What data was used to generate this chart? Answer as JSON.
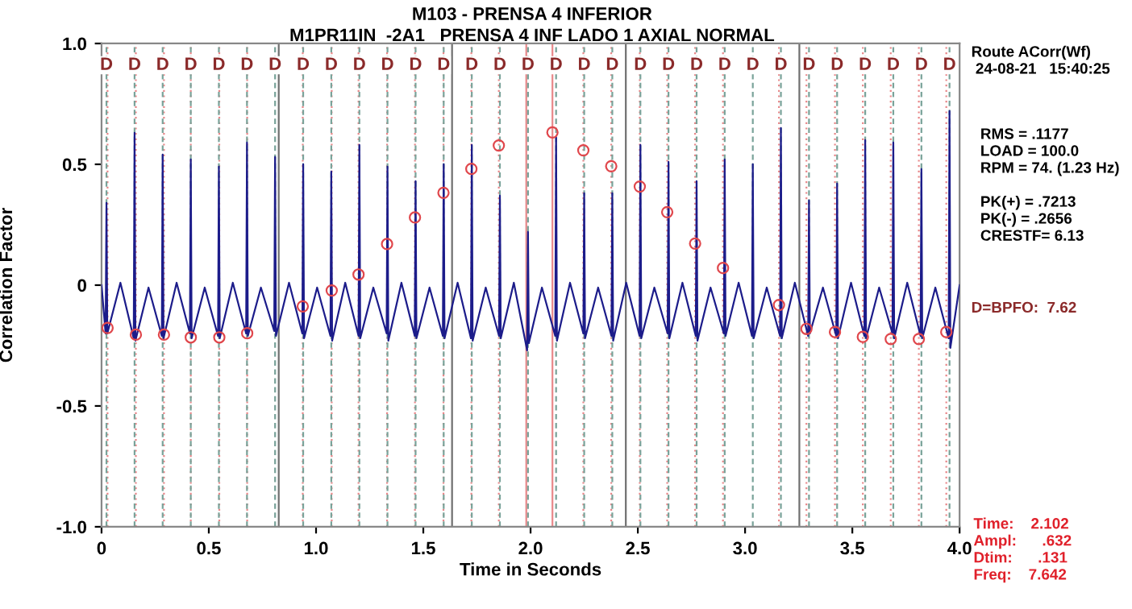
{
  "chart_data": {
    "type": "line",
    "title": "M103 - PRENSA 4 INFERIOR",
    "subtitle": "M1PR11IN  -2A1   PRENSA 4 INF LADO 1 AXIAL NORMAL",
    "xlabel": "Time in Seconds",
    "ylabel": "Correlation Factor",
    "xlim": [
      0,
      4.0
    ],
    "ylim": [
      -1.0,
      1.0
    ],
    "xticks": [
      0,
      0.5,
      {
        "value": 1,
        "label": "1.0"
      },
      1.5,
      {
        "value": 2,
        "label": "2.0"
      },
      2.5,
      {
        "value": 3,
        "label": "3.0"
      },
      3.5,
      {
        "value": 4,
        "label": "4.0"
      }
    ],
    "yticks": [
      {
        "value": -1,
        "label": "-1.0"
      },
      -0.5,
      0,
      0.5,
      {
        "value": 1,
        "label": "1.0"
      }
    ],
    "grid": false,
    "legend": false,
    "line_style": "solid",
    "annotations": [
      "Route ACorr(Wf)\n 24-08-21   15:40:25",
      "RMS = .1177\nLOAD = 100.0\nRPM = 74. (1.23 Hz)\n\nPK(+) = .7213\nPK(-) = .2656\nCRESTF= 6.13",
      "D=BPFO:  7.62",
      "Time:    2.102\nAmpl:      .632\nDtim:      .131\nFreq:    7.642"
    ],
    "series": [
      {
        "color": "#1c1c8a",
        "x": [
          0.0,
          0.019,
          0.023,
          0.027,
          0.088,
          0.15,
          0.154,
          0.158,
          0.219,
          0.281,
          0.285,
          0.289,
          0.35,
          0.412,
          0.416,
          0.42,
          0.481,
          0.543,
          0.547,
          0.551,
          0.612,
          0.674,
          0.678,
          0.682,
          0.743,
          0.805,
          0.809,
          0.813,
          0.874,
          0.936,
          0.94,
          0.944,
          1.005,
          1.067,
          1.071,
          1.075,
          1.136,
          1.198,
          1.202,
          1.206,
          1.267,
          1.329,
          1.333,
          1.337,
          1.398,
          1.46,
          1.464,
          1.468,
          1.529,
          1.591,
          1.595,
          1.599,
          1.66,
          1.722,
          1.726,
          1.73,
          1.791,
          1.853,
          1.857,
          1.861,
          1.922,
          1.984,
          1.988,
          1.992,
          2.053,
          2.115,
          2.119,
          2.123,
          2.184,
          2.246,
          2.25,
          2.254,
          2.315,
          2.377,
          2.381,
          2.385,
          2.446,
          2.508,
          2.512,
          2.516,
          2.577,
          2.639,
          2.643,
          2.647,
          2.708,
          2.77,
          2.774,
          2.778,
          2.839,
          2.901,
          2.905,
          2.909,
          2.97,
          3.032,
          3.036,
          3.04,
          3.101,
          3.163,
          3.167,
          3.171,
          3.232,
          3.294,
          3.298,
          3.302,
          3.363,
          3.425,
          3.429,
          3.433,
          3.494,
          3.556,
          3.56,
          3.564,
          3.625,
          3.687,
          3.691,
          3.695,
          3.756,
          3.818,
          3.822,
          3.826,
          3.887,
          3.949,
          3.953,
          3.957,
          4.0
        ],
        "values": [
          0.0,
          -0.2,
          0.34,
          -0.2,
          0.01,
          -0.22,
          0.63,
          -0.23,
          -0.01,
          -0.21,
          0.54,
          -0.22,
          0.01,
          -0.2,
          0.52,
          -0.22,
          -0.01,
          -0.21,
          0.49,
          -0.22,
          0.01,
          -0.2,
          0.59,
          -0.21,
          -0.01,
          -0.19,
          0.53,
          -0.21,
          0.01,
          -0.2,
          0.5,
          -0.22,
          -0.01,
          -0.21,
          0.47,
          -0.23,
          0.01,
          -0.21,
          0.58,
          -0.22,
          -0.01,
          -0.2,
          0.49,
          -0.23,
          0.01,
          -0.21,
          0.43,
          -0.22,
          -0.01,
          -0.21,
          0.5,
          -0.22,
          0.01,
          -0.22,
          0.58,
          -0.23,
          -0.01,
          -0.21,
          0.37,
          -0.22,
          0.01,
          -0.27,
          0.22,
          -0.24,
          -0.01,
          -0.21,
          0.61,
          -0.23,
          0.01,
          -0.2,
          0.38,
          -0.22,
          -0.01,
          -0.21,
          0.38,
          -0.23,
          0.01,
          -0.21,
          0.58,
          -0.22,
          -0.01,
          -0.2,
          0.51,
          -0.22,
          0.01,
          -0.21,
          0.43,
          -0.23,
          -0.01,
          -0.2,
          0.52,
          -0.21,
          0.01,
          -0.21,
          0.5,
          -0.22,
          -0.01,
          -0.21,
          0.65,
          -0.22,
          0.01,
          -0.21,
          0.35,
          -0.2,
          -0.01,
          -0.21,
          0.42,
          -0.22,
          0.01,
          -0.21,
          0.6,
          -0.22,
          -0.01,
          -0.2,
          0.59,
          -0.22,
          0.01,
          -0.21,
          0.48,
          -0.22,
          -0.01,
          -0.22,
          0.72,
          -0.26,
          0.0
        ]
      },
      {
        "type": "scatter",
        "color": "#e0474c",
        "marker": "circle",
        "x": [
          0.028,
          0.16,
          0.291,
          0.416,
          0.549,
          0.679,
          0.938,
          1.073,
          1.198,
          1.331,
          1.461,
          1.594,
          1.724,
          1.852,
          2.102,
          2.246,
          2.376,
          2.509,
          2.637,
          2.767,
          2.897,
          3.158,
          3.286,
          3.419,
          3.549,
          3.679,
          3.81,
          3.938
        ],
        "values": [
          -0.177,
          -0.205,
          -0.205,
          -0.216,
          -0.216,
          -0.199,
          -0.088,
          -0.022,
          0.044,
          0.17,
          0.28,
          0.382,
          0.481,
          0.578,
          0.632,
          0.558,
          0.492,
          0.408,
          0.302,
          0.172,
          0.071,
          -0.082,
          -0.181,
          -0.194,
          -0.214,
          -0.223,
          -0.223,
          -0.194
        ]
      }
    ],
    "ref_lines": [
      {
        "axis": "x",
        "value": 0.826,
        "color": "#707070",
        "line_style": "solid"
      },
      {
        "axis": "x",
        "value": 1.634,
        "color": "#707070",
        "line_style": "solid"
      },
      {
        "axis": "x",
        "value": 2.444,
        "color": "#707070",
        "line_style": "solid"
      },
      {
        "axis": "x",
        "value": 3.253,
        "color": "#707070",
        "line_style": "solid"
      },
      {
        "axis": "x",
        "value": 1.98,
        "color": "#e8888a",
        "line_style": "solid"
      },
      {
        "axis": "x",
        "value": 2.102,
        "color": "#e8888a",
        "line_style": "solid"
      },
      {
        "axis": "x",
        "value": 0.028,
        "color": "#e8888a",
        "line_style": "dotted"
      },
      {
        "axis": "x",
        "value": 0.16,
        "color": "#e8888a",
        "line_style": "dotted"
      },
      {
        "axis": "x",
        "value": 0.291,
        "color": "#e8888a",
        "line_style": "dotted"
      },
      {
        "axis": "x",
        "value": 0.416,
        "color": "#e8888a",
        "line_style": "dotted"
      },
      {
        "axis": "x",
        "value": 0.549,
        "color": "#e8888a",
        "line_style": "dotted"
      },
      {
        "axis": "x",
        "value": 0.679,
        "color": "#e8888a",
        "line_style": "dotted"
      },
      {
        "axis": "x",
        "value": 0.938,
        "color": "#e8888a",
        "line_style": "dotted"
      },
      {
        "axis": "x",
        "value": 1.073,
        "color": "#e8888a",
        "line_style": "dotted"
      },
      {
        "axis": "x",
        "value": 1.198,
        "color": "#e8888a",
        "line_style": "dotted"
      },
      {
        "axis": "x",
        "value": 1.331,
        "color": "#e8888a",
        "line_style": "dotted"
      },
      {
        "axis": "x",
        "value": 1.461,
        "color": "#e8888a",
        "line_style": "dotted"
      },
      {
        "axis": "x",
        "value": 1.594,
        "color": "#e8888a",
        "line_style": "dotted"
      },
      {
        "axis": "x",
        "value": 1.724,
        "color": "#e8888a",
        "line_style": "dotted"
      },
      {
        "axis": "x",
        "value": 1.852,
        "color": "#e8888a",
        "line_style": "dotted"
      },
      {
        "axis": "x",
        "value": 2.246,
        "color": "#e8888a",
        "line_style": "dotted"
      },
      {
        "axis": "x",
        "value": 2.376,
        "color": "#e8888a",
        "line_style": "dotted"
      },
      {
        "axis": "x",
        "value": 2.509,
        "color": "#e8888a",
        "line_style": "dotted"
      },
      {
        "axis": "x",
        "value": 2.637,
        "color": "#e8888a",
        "line_style": "dotted"
      },
      {
        "axis": "x",
        "value": 2.767,
        "color": "#e8888a",
        "line_style": "dotted"
      },
      {
        "axis": "x",
        "value": 2.897,
        "color": "#e8888a",
        "line_style": "dotted"
      },
      {
        "axis": "x",
        "value": 3.158,
        "color": "#e8888a",
        "line_style": "dotted"
      },
      {
        "axis": "x",
        "value": 3.286,
        "color": "#e8888a",
        "line_style": "dotted"
      },
      {
        "axis": "x",
        "value": 3.419,
        "color": "#e8888a",
        "line_style": "dotted"
      },
      {
        "axis": "x",
        "value": 3.549,
        "color": "#e8888a",
        "line_style": "dotted"
      },
      {
        "axis": "x",
        "value": 3.679,
        "color": "#e8888a",
        "line_style": "dotted"
      },
      {
        "axis": "x",
        "value": 3.81,
        "color": "#e8888a",
        "line_style": "dotted"
      },
      {
        "axis": "x",
        "value": 3.938,
        "color": "#e8888a",
        "line_style": "dotted"
      },
      {
        "axis": "x",
        "value": 0.023,
        "label": "D",
        "color": "#7aa39a",
        "line_style": "dashed"
      },
      {
        "axis": "x",
        "value": 0.154,
        "label": "D",
        "color": "#7aa39a",
        "line_style": "dashed"
      },
      {
        "axis": "x",
        "value": 0.285,
        "label": "D",
        "color": "#7aa39a",
        "line_style": "dashed"
      },
      {
        "axis": "x",
        "value": 0.416,
        "label": "D",
        "color": "#7aa39a",
        "line_style": "dashed"
      },
      {
        "axis": "x",
        "value": 0.547,
        "label": "D",
        "color": "#7aa39a",
        "line_style": "dashed"
      },
      {
        "axis": "x",
        "value": 0.678,
        "label": "D",
        "color": "#7aa39a",
        "line_style": "dashed"
      },
      {
        "axis": "x",
        "value": 0.809,
        "label": "D",
        "color": "#7aa39a",
        "line_style": "dashed"
      },
      {
        "axis": "x",
        "value": 0.94,
        "label": "D",
        "color": "#7aa39a",
        "line_style": "dashed"
      },
      {
        "axis": "x",
        "value": 1.071,
        "label": "D",
        "color": "#7aa39a",
        "line_style": "dashed"
      },
      {
        "axis": "x",
        "value": 1.202,
        "label": "D",
        "color": "#7aa39a",
        "line_style": "dashed"
      },
      {
        "axis": "x",
        "value": 1.333,
        "label": "D",
        "color": "#7aa39a",
        "line_style": "dashed"
      },
      {
        "axis": "x",
        "value": 1.464,
        "label": "D",
        "color": "#7aa39a",
        "line_style": "dashed"
      },
      {
        "axis": "x",
        "value": 1.595,
        "label": "D",
        "color": "#7aa39a",
        "line_style": "dashed"
      },
      {
        "axis": "x",
        "value": 1.726,
        "label": "D",
        "color": "#7aa39a",
        "line_style": "dashed"
      },
      {
        "axis": "x",
        "value": 1.857,
        "label": "D",
        "color": "#7aa39a",
        "line_style": "dashed"
      },
      {
        "axis": "x",
        "value": 1.988,
        "label": "D",
        "color": "#7aa39a",
        "line_style": "dashed"
      },
      {
        "axis": "x",
        "value": 2.119,
        "label": "D",
        "color": "#7aa39a",
        "line_style": "dashed"
      },
      {
        "axis": "x",
        "value": 2.25,
        "label": "D",
        "color": "#7aa39a",
        "line_style": "dashed"
      },
      {
        "axis": "x",
        "value": 2.381,
        "label": "D",
        "color": "#7aa39a",
        "line_style": "dashed"
      },
      {
        "axis": "x",
        "value": 2.512,
        "label": "D",
        "color": "#7aa39a",
        "line_style": "dashed"
      },
      {
        "axis": "x",
        "value": 2.643,
        "label": "D",
        "color": "#7aa39a",
        "line_style": "dashed"
      },
      {
        "axis": "x",
        "value": 2.774,
        "label": "D",
        "color": "#7aa39a",
        "line_style": "dashed"
      },
      {
        "axis": "x",
        "value": 2.905,
        "label": "D",
        "color": "#7aa39a",
        "line_style": "dashed"
      },
      {
        "axis": "x",
        "value": 3.036,
        "label": "D",
        "color": "#7aa39a",
        "line_style": "dashed"
      },
      {
        "axis": "x",
        "value": 3.167,
        "label": "D",
        "color": "#7aa39a",
        "line_style": "dashed"
      },
      {
        "axis": "x",
        "value": 3.298,
        "label": "D",
        "color": "#7aa39a",
        "line_style": "dashed"
      },
      {
        "axis": "x",
        "value": 3.429,
        "label": "D",
        "color": "#7aa39a",
        "line_style": "dashed"
      },
      {
        "axis": "x",
        "value": 3.56,
        "label": "D",
        "color": "#7aa39a",
        "line_style": "dashed"
      },
      {
        "axis": "x",
        "value": 3.691,
        "label": "D",
        "color": "#7aa39a",
        "line_style": "dashed"
      },
      {
        "axis": "x",
        "value": 3.822,
        "label": "D",
        "color": "#7aa39a",
        "line_style": "dashed"
      },
      {
        "axis": "x",
        "value": 3.953,
        "label": "D",
        "color": "#7aa39a",
        "line_style": "dashed"
      }
    ]
  }
}
